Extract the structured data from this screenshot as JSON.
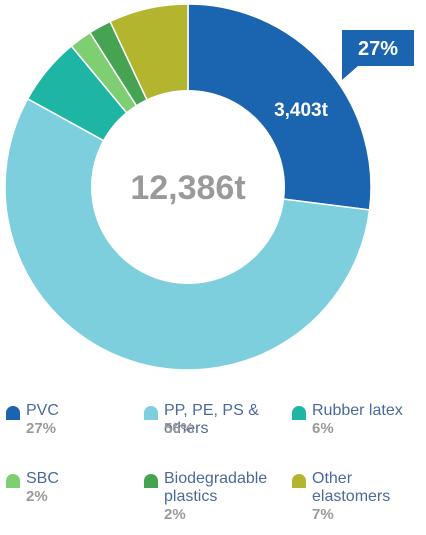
{
  "chart_data": {
    "type": "donut",
    "center_label": "12,386t",
    "highlight": {
      "badge": "27%",
      "slice_label": "3,403t"
    },
    "slices": [
      {
        "name": "PVC",
        "pct_label": "27%",
        "value": 27,
        "color": "#1a64b0"
      },
      {
        "name": "PP, PE, PS & others",
        "pct_label": "56%",
        "value": 56,
        "color": "#7ecfde"
      },
      {
        "name": "Rubber latex",
        "pct_label": "6%",
        "value": 6,
        "color": "#1fb5a5"
      },
      {
        "name": "SBC",
        "pct_label": "2%",
        "value": 2,
        "color": "#7dcf72"
      },
      {
        "name": "Biodegradable plastics",
        "pct_label": "2%",
        "value": 2,
        "color": "#45a351"
      },
      {
        "name": "Other elastomers",
        "pct_label": "7%",
        "value": 7,
        "color": "#b4b52f"
      }
    ]
  }
}
